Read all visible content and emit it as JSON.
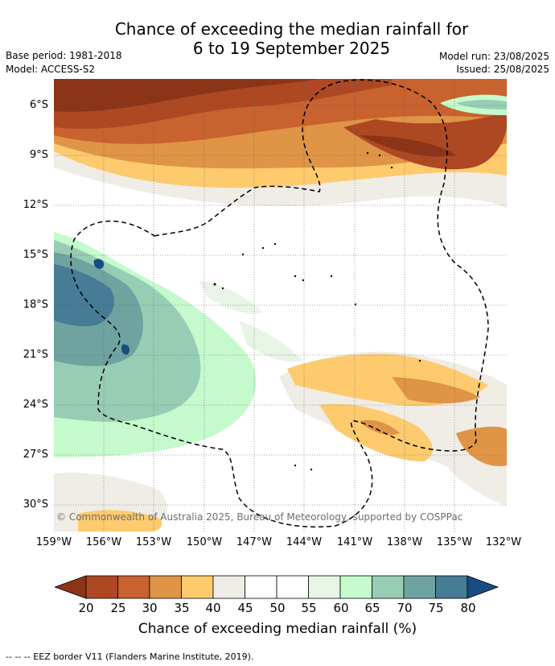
{
  "header": {
    "title_line1": "Chance of exceeding the median rainfall for",
    "title_line2": "6 to 19 September 2025",
    "base_period": "Base period: 1981-2018",
    "model": "Model: ACCESS-S2",
    "model_run": "Model run: 23/08/2025",
    "issued": "Issued: 25/08/2025"
  },
  "map": {
    "lat_labels": [
      "6°S",
      "9°S",
      "12°S",
      "15°S",
      "18°S",
      "21°S",
      "24°S",
      "27°S",
      "30°S"
    ],
    "lon_labels": [
      "159°W",
      "156°W",
      "153°W",
      "150°W",
      "147°W",
      "144°W",
      "141°W",
      "138°W",
      "135°W",
      "132°W"
    ],
    "copyright": "© Commonwealth of Australia 2025, Bureau of Meteorology, supported by COSPPac"
  },
  "colorbar": {
    "ticks": [
      "20",
      "25",
      "30",
      "35",
      "40",
      "45",
      "50",
      "55",
      "60",
      "65",
      "70",
      "75",
      "80"
    ],
    "colors": [
      "#ad4823",
      "#c8622e",
      "#e09446",
      "#fdcb6e",
      "#f0ece6",
      "#ffffff",
      "#ffffff",
      "#e8f5e6",
      "#c5fbcc",
      "#98cdb5",
      "#6fa3a0",
      "#467c95"
    ],
    "under_color": "#8c3418",
    "over_color": "#184c84",
    "label": "Chance of exceeding median rainfall (%)"
  },
  "footer": {
    "legend": "--  --  -- EEZ border V11 (Flanders Marine Institute, 2019)."
  }
}
